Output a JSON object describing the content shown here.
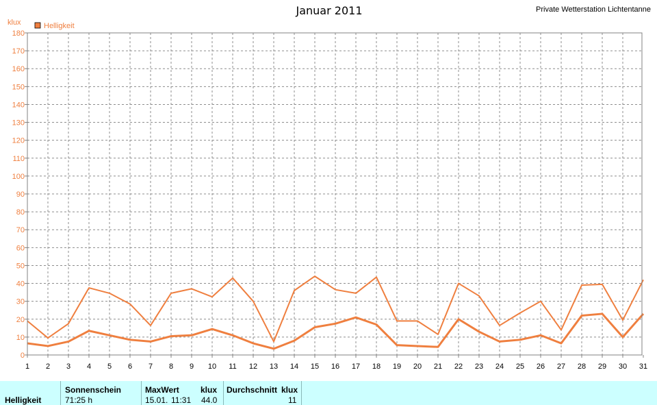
{
  "header": {
    "title": "Januar 2011",
    "station": "Private Wetterstation Lichtentanne"
  },
  "chart_data": {
    "type": "line",
    "unit_label": "klux",
    "legend": "Helligkeit",
    "ylim": [
      0,
      180
    ],
    "y_ticks": [
      0,
      10,
      20,
      30,
      40,
      50,
      60,
      70,
      80,
      90,
      100,
      110,
      120,
      130,
      140,
      150,
      160,
      170,
      180
    ],
    "x": [
      1,
      2,
      3,
      4,
      5,
      6,
      7,
      8,
      9,
      10,
      11,
      12,
      13,
      14,
      15,
      16,
      17,
      18,
      19,
      20,
      21,
      22,
      23,
      24,
      25,
      26,
      27,
      28,
      29,
      30,
      31
    ],
    "grid": true,
    "legend_position": "top-left",
    "color": "#ef7f3f",
    "series": [
      {
        "values": [
          19,
          9.5,
          17.5,
          37.5,
          34.5,
          28.5,
          16.5,
          34.5,
          37,
          32.5,
          43,
          30,
          7.5,
          36,
          44,
          36.5,
          34.5,
          43.5,
          19,
          19,
          11.5,
          40,
          33,
          16.5,
          23.5,
          30,
          14,
          39,
          39.5,
          19.5,
          42
        ]
      },
      {
        "values": [
          6.5,
          5,
          7.5,
          13.5,
          11,
          8.5,
          7.5,
          10.5,
          11,
          14.5,
          11,
          6.5,
          3.5,
          8,
          15.5,
          17.5,
          21,
          17,
          5.5,
          5,
          4.5,
          20,
          13,
          7.5,
          8.5,
          11,
          6.5,
          22,
          23,
          10,
          23
        ]
      }
    ]
  },
  "stats": {
    "row_label": "Helligkeit",
    "sonnenschein_header": "Sonnenschein",
    "sonnenschein_value": "71:25 h",
    "maxwert_header": "MaxWert",
    "maxwert_unit": "klux",
    "maxwert_date": "15.01.",
    "maxwert_time": "11:31",
    "maxwert_value": "44.0",
    "durchschnitt_header": "Durchschnitt",
    "durchschnitt_unit": "klux",
    "durchschnitt_value": "11"
  }
}
